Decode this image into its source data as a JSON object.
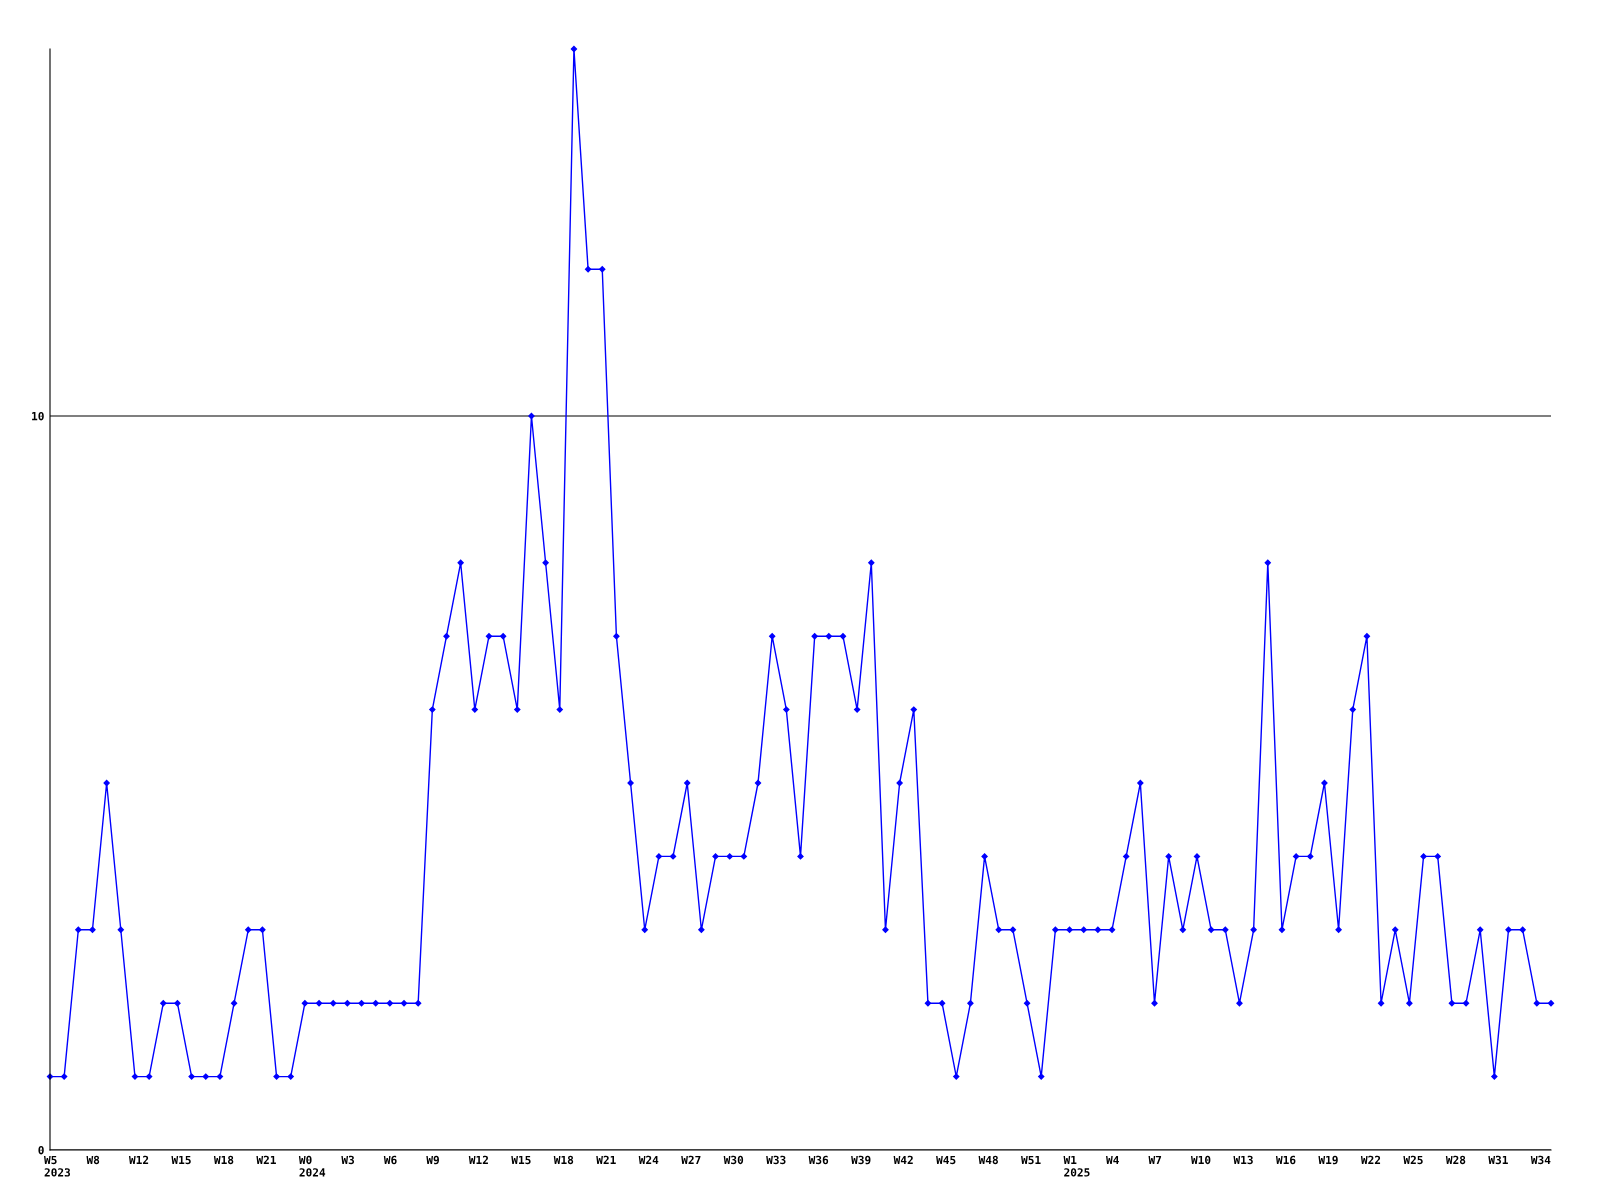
{
  "chart_data": {
    "type": "line",
    "categories": [
      "W5\n2023",
      null,
      null,
      "W8",
      null,
      null,
      "W12",
      null,
      null,
      "W15",
      null,
      null,
      "W18",
      null,
      null,
      "W21",
      null,
      null,
      "W0\n2024",
      null,
      null,
      "W3",
      null,
      null,
      "W6",
      null,
      null,
      "W9",
      null,
      null,
      "W12",
      null,
      null,
      "W15",
      null,
      null,
      "W18",
      null,
      null,
      "W21",
      null,
      null,
      "W24",
      null,
      null,
      "W27",
      null,
      null,
      "W30",
      null,
      null,
      "W33",
      null,
      null,
      "W36",
      null,
      null,
      "W39",
      null,
      null,
      "W42",
      null,
      null,
      "W45",
      null,
      null,
      "W48",
      null,
      null,
      "W51",
      null,
      null,
      "W1\n2025",
      null,
      null,
      "W4",
      null,
      null,
      "W7",
      null,
      null,
      "W10",
      null,
      null,
      "W13",
      null,
      null,
      "W16",
      null,
      null,
      "W19",
      null,
      null,
      "W22",
      null,
      null,
      "W25",
      null,
      null,
      "W28",
      null,
      null,
      "W31",
      null,
      null,
      "W34",
      null
    ],
    "series": [
      {
        "color": "#0000ff",
        "values": [
          1,
          1,
          3,
          3,
          5,
          3,
          1,
          1,
          2,
          2,
          1,
          1,
          1,
          2,
          3,
          3,
          1,
          1,
          2,
          2,
          2,
          2,
          2,
          2,
          2,
          2,
          2,
          6,
          7,
          8,
          6,
          7,
          7,
          6,
          10,
          8,
          6,
          15,
          12,
          12,
          7,
          5,
          3,
          4,
          4,
          5,
          3,
          4,
          4,
          4,
          5,
          7,
          6,
          4,
          7,
          7,
          7,
          6,
          8,
          3,
          5,
          6,
          2,
          2,
          1,
          2,
          4,
          3,
          3,
          2,
          1,
          3,
          3,
          3,
          3,
          3,
          4,
          5,
          2,
          4,
          3,
          4,
          3,
          3,
          2,
          3,
          8,
          3,
          4,
          4,
          5,
          3,
          6,
          7,
          2,
          3,
          2,
          4,
          4,
          2,
          2,
          3,
          1,
          3,
          3,
          2,
          2
        ]
      }
    ],
    "ylim": [
      0,
      15
    ],
    "yticks": [
      0,
      10
    ],
    "grid": "y",
    "marker": "diamond",
    "line_style": "solid",
    "legend": false
  }
}
